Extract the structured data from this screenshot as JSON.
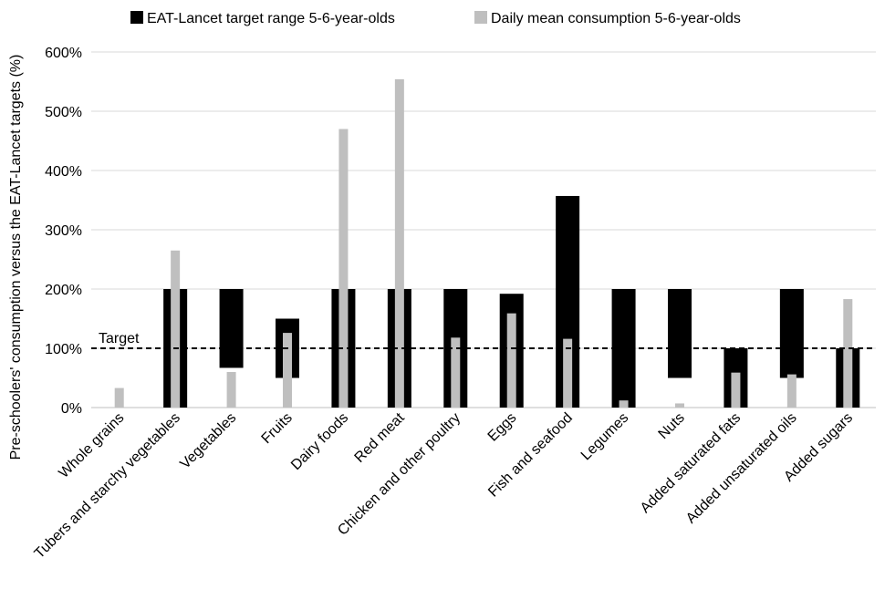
{
  "chart_data": {
    "type": "bar",
    "title": "",
    "ylabel": "Pre-schoolers' consumption versus the EAT-Lancet targets (%)",
    "xlabel": "",
    "ylim": [
      0,
      600
    ],
    "yticks": [
      0,
      100,
      200,
      300,
      400,
      500,
      600
    ],
    "ytick_labels": [
      "0%",
      "100%",
      "200%",
      "300%",
      "400%",
      "500%",
      "600%"
    ],
    "grid": true,
    "legend_position": "top",
    "categories": [
      "Whole grains",
      "Tubers and starchy vegetables",
      "Vegetables",
      "Fruits",
      "Dairy foods",
      "Red meat",
      "Chicken and other poultry",
      "Eggs",
      "Fish and seafood",
      "Legumes",
      "Nuts",
      "Added saturated fats",
      "Added unsaturated oils",
      "Added sugars"
    ],
    "series": [
      {
        "name": "EAT-Lancet target range 5-6-year-olds",
        "color": "#000000",
        "kind": "range",
        "ranges": [
          null,
          [
            0,
            200
          ],
          [
            67,
            200
          ],
          [
            50,
            150
          ],
          [
            0,
            200
          ],
          [
            0,
            200
          ],
          [
            0,
            200
          ],
          [
            0,
            192
          ],
          [
            0,
            357
          ],
          [
            0,
            200
          ],
          [
            50,
            200
          ],
          [
            0,
            100
          ],
          [
            50,
            200
          ],
          [
            0,
            100
          ]
        ]
      },
      {
        "name": "Daily mean consumption 5-6-year-olds",
        "color": "#bfbfbf",
        "kind": "bar",
        "values": [
          33,
          265,
          60,
          126,
          470,
          554,
          118,
          159,
          116,
          12,
          7,
          59,
          56,
          183
        ]
      }
    ],
    "reference_line": {
      "value": 100,
      "label": "Target",
      "style": "dashed"
    }
  }
}
